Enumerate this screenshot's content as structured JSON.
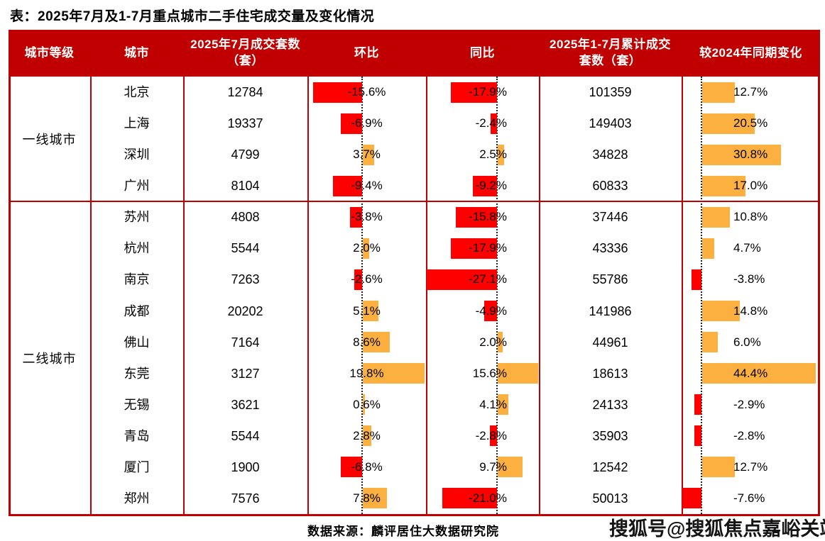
{
  "title": "表：2025年7月及1-7月重点城市二手住宅成交量及变化情况",
  "footer": {
    "source": "数据来源：麟评居住大数据研究院",
    "watermark": "搜狐号@搜狐焦点嘉峪关站"
  },
  "colors": {
    "header_bg": "#C00000",
    "grid_border": "#C00000",
    "bar_positive": "#FBB040",
    "bar_negative": "#FF0000",
    "header_text": "#FFFFFF",
    "body_text": "#000000"
  },
  "chart_data": {
    "type": "table",
    "title": "表：2025年7月及1-7月重点城市二手住宅成交量及变化情况",
    "columns": [
      "城市等级",
      "城市",
      "2025年7月成交套数（套）",
      "环比",
      "同比",
      "2025年1-7月累计成交套数（套）",
      "较2024年同期变化"
    ],
    "percent_bar_columns": [
      "环比",
      "同比",
      "较2024年同期变化"
    ],
    "bar_style_note": "negative values red bars extend left of dotted baseline, positive orange bars extend right",
    "groups": [
      {
        "tier": "一线城市",
        "rows": [
          {
            "city": "北京",
            "jul_units": 12784,
            "mom_pct": -15.6,
            "yoy_pct": -17.9,
            "cum_units": 101359,
            "vs2024_pct": 12.7
          },
          {
            "city": "上海",
            "jul_units": 19337,
            "mom_pct": -6.9,
            "yoy_pct": -2.4,
            "cum_units": 149403,
            "vs2024_pct": 20.5
          },
          {
            "city": "深圳",
            "jul_units": 4799,
            "mom_pct": 3.7,
            "yoy_pct": 2.5,
            "cum_units": 34828,
            "vs2024_pct": 30.8
          },
          {
            "city": "广州",
            "jul_units": 8104,
            "mom_pct": -9.4,
            "yoy_pct": -9.2,
            "cum_units": 60833,
            "vs2024_pct": 17.0
          }
        ]
      },
      {
        "tier": "二线城市",
        "rows": [
          {
            "city": "苏州",
            "jul_units": 4808,
            "mom_pct": -3.8,
            "yoy_pct": -15.8,
            "cum_units": 37446,
            "vs2024_pct": 10.8
          },
          {
            "city": "杭州",
            "jul_units": 5544,
            "mom_pct": 2.0,
            "yoy_pct": -17.9,
            "cum_units": 43336,
            "vs2024_pct": 4.7
          },
          {
            "city": "南京",
            "jul_units": 7263,
            "mom_pct": -2.6,
            "yoy_pct": -27.1,
            "cum_units": 55786,
            "vs2024_pct": -3.8
          },
          {
            "city": "成都",
            "jul_units": 20202,
            "mom_pct": 5.1,
            "yoy_pct": -4.9,
            "cum_units": 141986,
            "vs2024_pct": 14.8
          },
          {
            "city": "佛山",
            "jul_units": 7164,
            "mom_pct": 8.6,
            "yoy_pct": 2.0,
            "cum_units": 44961,
            "vs2024_pct": 6.0
          },
          {
            "city": "东莞",
            "jul_units": 3127,
            "mom_pct": 19.8,
            "yoy_pct": 15.6,
            "cum_units": 18613,
            "vs2024_pct": 44.4
          },
          {
            "city": "无锡",
            "jul_units": 3621,
            "mom_pct": 0.6,
            "yoy_pct": 4.1,
            "cum_units": 24133,
            "vs2024_pct": -2.9
          },
          {
            "city": "青岛",
            "jul_units": 5544,
            "mom_pct": 2.8,
            "yoy_pct": -2.8,
            "cum_units": 35903,
            "vs2024_pct": -2.8
          },
          {
            "city": "厦门",
            "jul_units": 1900,
            "mom_pct": -6.8,
            "yoy_pct": 9.7,
            "cum_units": 12542,
            "vs2024_pct": 12.7
          },
          {
            "city": "郑州",
            "jul_units": 7576,
            "mom_pct": 7.8,
            "yoy_pct": -21.0,
            "cum_units": 50013,
            "vs2024_pct": -7.6
          }
        ]
      }
    ]
  }
}
